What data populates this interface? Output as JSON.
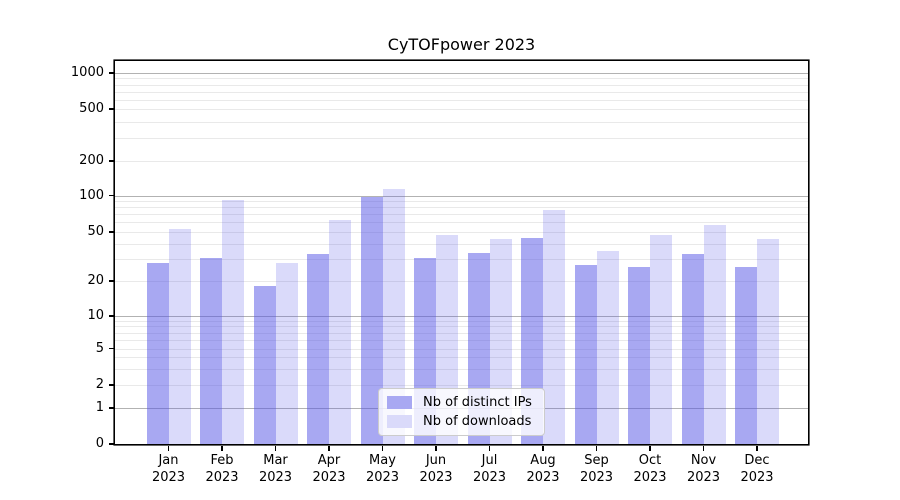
{
  "title": "CyTOFpower 2023",
  "legend": {
    "items": [
      {
        "label": "Nb of distinct IPs",
        "swatch_color": "#a8a8f2"
      },
      {
        "label": "Nb of downloads",
        "swatch_color": "#dadafa"
      }
    ]
  },
  "chart_data": {
    "type": "bar",
    "title": "CyTOFpower 2023",
    "categories": [
      "Jan 2023",
      "Feb 2023",
      "Mar 2023",
      "Apr 2023",
      "May 2023",
      "Jun 2023",
      "Jul 2023",
      "Aug 2023",
      "Sep 2023",
      "Oct 2023",
      "Nov 2023",
      "Dec 2023"
    ],
    "series": [
      {
        "name": "Nb of distinct IPs",
        "id": "distinct-ips",
        "fill": "rgba(82,82,230,0.5)",
        "values": [
          28,
          31,
          18,
          33,
          98,
          31,
          34,
          45,
          27,
          26,
          33,
          26
        ]
      },
      {
        "name": "Nb of downloads",
        "id": "downloads",
        "fill": "rgba(82,82,230,0.215)",
        "values": [
          53,
          92,
          28,
          63,
          115,
          47,
          44,
          76,
          35,
          47,
          57,
          44
        ]
      }
    ],
    "yscale": "symlog",
    "y_ticks": [
      0,
      1,
      2,
      5,
      10,
      20,
      50,
      100,
      200,
      500,
      1000
    ],
    "ylim": [
      0,
      1250
    ],
    "xlabel": "",
    "ylabel": "",
    "grid": "horizontal, major and log-minor",
    "legend_position": "lower center",
    "colors": {
      "grid_major": "#b2b2b2",
      "grid_minor": "#e9e9e9",
      "axis": "#000000",
      "background": "#ffffff"
    }
  }
}
